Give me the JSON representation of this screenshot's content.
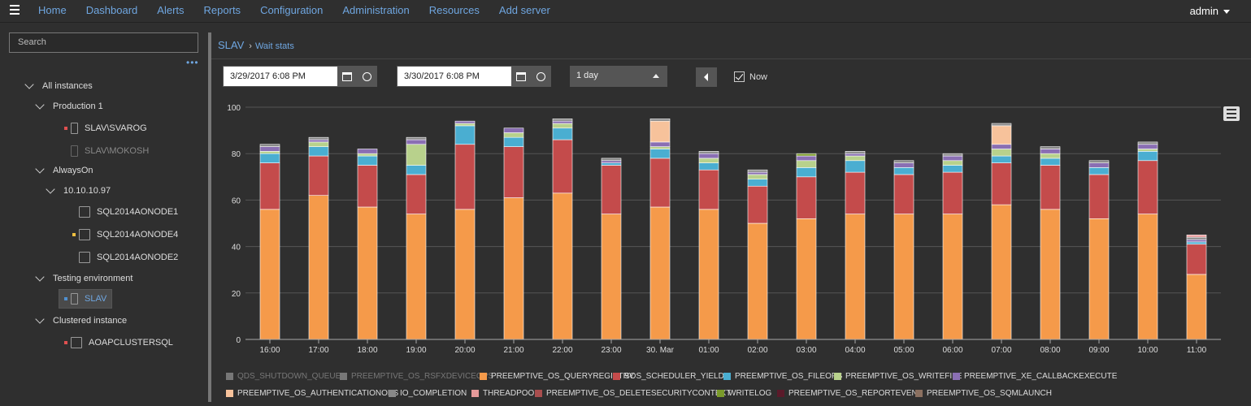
{
  "nav": {
    "items": [
      "Home",
      "Dashboard",
      "Alerts",
      "Reports",
      "Configuration",
      "Administration",
      "Resources",
      "Add server"
    ],
    "user": "admin"
  },
  "sidebar": {
    "search_placeholder": "Search",
    "more": "•••",
    "tree": [
      {
        "label": "All instances",
        "type": "group"
      },
      {
        "label": "Production 1",
        "type": "group"
      },
      {
        "label": "SLAV\\SVAROG",
        "type": "server",
        "status_color": "#e05050"
      },
      {
        "label": "SLAV\\MOKOSH",
        "type": "server-disabled"
      },
      {
        "label": "AlwaysOn",
        "type": "group"
      },
      {
        "label": "10.10.10.97",
        "type": "group"
      },
      {
        "label": "SQL2014AONODE1",
        "type": "node"
      },
      {
        "label": "SQL2014AONODE4",
        "type": "node",
        "status_color": "#f0c040"
      },
      {
        "label": "SQL2014AONODE2",
        "type": "node"
      },
      {
        "label": "Testing environment",
        "type": "group"
      },
      {
        "label": "SLAV",
        "type": "server-selected",
        "status_color": "#5090d0"
      },
      {
        "label": "Clustered instance",
        "type": "group"
      },
      {
        "label": "AOAPCLUSTERSQL",
        "type": "cluster",
        "status_color": "#e05050"
      }
    ]
  },
  "breadcrumb": {
    "root": "SLAV",
    "current": "Wait stats"
  },
  "toolbar": {
    "from": "3/29/2017 6:08 PM",
    "to": "3/30/2017 6:08 PM",
    "range": "1 day",
    "now_label": "Now"
  },
  "colors": {
    "QUERYREGISTRY": "#f59a4a",
    "SCHED_YIELD": "#c44b4b",
    "FILEOPS": "#4aaed1",
    "WRITEFILE": "#b8d18c",
    "CALLBACK": "#8a6fb3",
    "AUTH": "#f7c29b",
    "THREADPOOL": "#e69a9a",
    "DELSEC": "#a94e4e",
    "WRITELOG": "#7a9a2a",
    "REPORTEVENT": "#5a1a2a",
    "SQMLAUNCH": "#8b7060",
    "QDS": "#777777",
    "RSFX": "#777777",
    "IO": "#888888"
  },
  "chart_data": {
    "type": "bar",
    "stacked": true,
    "ylim": [
      0,
      100
    ],
    "yticks": [
      0,
      20,
      40,
      60,
      80,
      100
    ],
    "categories": [
      "16:00",
      "17:00",
      "18:00",
      "19:00",
      "20:00",
      "21:00",
      "22:00",
      "23:00",
      "30. Mar",
      "01:00",
      "02:00",
      "03:00",
      "04:00",
      "05:00",
      "06:00",
      "07:00",
      "08:00",
      "09:00",
      "10:00",
      "11:00"
    ],
    "series": [
      {
        "name": "QDS_SHUTDOWN_QUEUE",
        "key": "QDS",
        "values": [
          0,
          0,
          0,
          0,
          0,
          0,
          0,
          0,
          0,
          0,
          0,
          0,
          0,
          0,
          0,
          0,
          0,
          0,
          0,
          0
        ]
      },
      {
        "name": "PREEMPTIVE_OS_RSFXDEVICEOPS",
        "key": "RSFX",
        "values": [
          0,
          0,
          0,
          0,
          0,
          0,
          0,
          0,
          0,
          0,
          0,
          0,
          0,
          0,
          0,
          0,
          0,
          0,
          0,
          0
        ]
      },
      {
        "name": "PREEMPTIVE_OS_QUERYREGISTRY",
        "key": "QUERYREGISTRY",
        "values": [
          56,
          62,
          57,
          54,
          56,
          61,
          63,
          54,
          57,
          56,
          50,
          52,
          54,
          54,
          54,
          58,
          56,
          52,
          54,
          28
        ]
      },
      {
        "name": "SOS_SCHEDULER_YIELD",
        "key": "SCHED_YIELD",
        "values": [
          20,
          17,
          18,
          17,
          28,
          22,
          23,
          21,
          21,
          17,
          16,
          18,
          18,
          17,
          18,
          18,
          19,
          19,
          23,
          13
        ]
      },
      {
        "name": "PREEMPTIVE_OS_FILEOPS",
        "key": "FILEOPS",
        "values": [
          4,
          4,
          4,
          4,
          8,
          4,
          5,
          1,
          4,
          3,
          3,
          4,
          5,
          3,
          3,
          3,
          3,
          3,
          4,
          1
        ]
      },
      {
        "name": "PREEMPTIVE_OS_WRITEFILE",
        "key": "WRITEFILE",
        "values": [
          1,
          2,
          1,
          9,
          1,
          2,
          2,
          0,
          1,
          2,
          2,
          3,
          2,
          0,
          2,
          3,
          2,
          0,
          1,
          0
        ]
      },
      {
        "name": "PREEMPTIVE_XE_CALLBACKEXECUTE",
        "key": "CALLBACK",
        "values": [
          2,
          1,
          2,
          2,
          1,
          2,
          1,
          1,
          2,
          2,
          1,
          2,
          1,
          2,
          2,
          2,
          2,
          2,
          2,
          1
        ]
      },
      {
        "name": "PREEMPTIVE_OS_AUTHENTICATIONOPS",
        "key": "AUTH",
        "values": [
          0,
          0,
          0,
          0,
          0,
          0,
          0,
          0,
          9,
          0,
          0,
          0,
          0,
          0,
          0,
          8,
          0,
          0,
          0,
          0
        ]
      },
      {
        "name": "IO_COMPLETION",
        "key": "IO",
        "values": [
          1,
          1,
          0,
          1,
          0,
          0,
          1,
          1,
          1,
          1,
          1,
          0,
          1,
          1,
          1,
          1,
          1,
          1,
          1,
          1
        ]
      },
      {
        "name": "THREADPOOL",
        "key": "THREADPOOL",
        "values": [
          0,
          0,
          0,
          0,
          0,
          0,
          0,
          0,
          0,
          0,
          0,
          0,
          0,
          0,
          0,
          0,
          0,
          0,
          0,
          1
        ]
      },
      {
        "name": "PREEMPTIVE_OS_DELETESECURITYCONTEXT",
        "key": "DELSEC",
        "values": [
          0,
          0,
          0,
          0,
          0,
          0,
          0,
          0,
          0,
          0,
          0,
          0,
          0,
          0,
          0,
          0,
          0,
          0,
          0,
          0
        ]
      },
      {
        "name": "WRITELOG",
        "key": "WRITELOG",
        "values": [
          0,
          0,
          0,
          0,
          0,
          0,
          0,
          0,
          0,
          0,
          0,
          1,
          0,
          0,
          0,
          0,
          0,
          0,
          0,
          0
        ]
      },
      {
        "name": "PREEMPTIVE_OS_REPORTEVENT",
        "key": "REPORTEVENT",
        "values": [
          0,
          0,
          0,
          0,
          0,
          0,
          0,
          0,
          0,
          0,
          0,
          0,
          0,
          0,
          0,
          0,
          0,
          0,
          0,
          0
        ]
      },
      {
        "name": "PREEMPTIVE_OS_SQMLAUNCH",
        "key": "SQMLAUNCH",
        "values": [
          0,
          0,
          0,
          0,
          0,
          0,
          0,
          0,
          0,
          0,
          0,
          0,
          0,
          0,
          0,
          0,
          0,
          0,
          0,
          0
        ]
      }
    ]
  },
  "legend": [
    {
      "label": "QDS_SHUTDOWN_QUEUE",
      "key": "QDS",
      "dim": true
    },
    {
      "label": "PREEMPTIVE_OS_RSFXDEVICEOPS",
      "key": "RSFX",
      "dim": true
    },
    {
      "label": "PREEMPTIVE_OS_QUERYREGISTRY",
      "key": "QUERYREGISTRY"
    },
    {
      "label": "SOS_SCHEDULER_YIELD",
      "key": "SCHED_YIELD"
    },
    {
      "label": "PREEMPTIVE_OS_FILEOPS",
      "key": "FILEOPS"
    },
    {
      "label": "PREEMPTIVE_OS_WRITEFILE",
      "key": "WRITEFILE"
    },
    {
      "label": "PREEMPTIVE_XE_CALLBACKEXECUTE",
      "key": "CALLBACK"
    },
    {
      "label": "PREEMPTIVE_OS_AUTHENTICATIONOPS",
      "key": "AUTH"
    },
    {
      "label": "IO_COMPLETION",
      "key": "IO"
    },
    {
      "label": "THREADPOOL",
      "key": "THREADPOOL"
    },
    {
      "label": "PREEMPTIVE_OS_DELETESECURITYCONTEXT",
      "key": "DELSEC"
    },
    {
      "label": "WRITELOG",
      "key": "WRITELOG"
    },
    {
      "label": "PREEMPTIVE_OS_REPORTEVENT",
      "key": "REPORTEVENT"
    },
    {
      "label": "PREEMPTIVE_OS_SQMLAUNCH",
      "key": "SQMLAUNCH"
    }
  ]
}
